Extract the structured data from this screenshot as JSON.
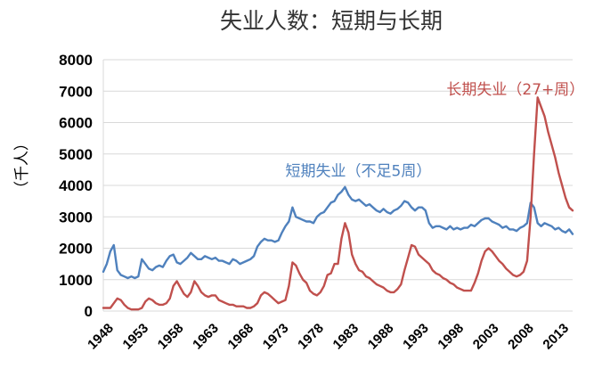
{
  "chart_data": {
    "type": "line",
    "title": "失业人数：短期与长期",
    "ylabel": "（千人）",
    "xlabel": "",
    "ylim": [
      0,
      8000
    ],
    "yticks": [
      0,
      1000,
      2000,
      3000,
      4000,
      5000,
      6000,
      7000,
      8000
    ],
    "xticks": [
      "1948",
      "1953",
      "1958",
      "1963",
      "1968",
      "1973",
      "1978",
      "1983",
      "1988",
      "1993",
      "1998",
      "2003",
      "2008",
      "2013"
    ],
    "xlim": [
      1948,
      2015
    ],
    "grid": "horizontal",
    "legend": "inline-labels",
    "series": [
      {
        "name": "短期失业（不足5周）",
        "color": "#4f81bd",
        "x": [
          1948.0,
          1948.5,
          1949.0,
          1949.5,
          1950.0,
          1950.5,
          1951.0,
          1951.5,
          1952.0,
          1952.5,
          1953.0,
          1953.5,
          1954.0,
          1954.5,
          1955.0,
          1955.5,
          1956.0,
          1956.5,
          1957.0,
          1957.5,
          1958.0,
          1958.5,
          1959.0,
          1959.5,
          1960.0,
          1960.5,
          1961.0,
          1961.5,
          1962.0,
          1962.5,
          1963.0,
          1963.5,
          1964.0,
          1964.5,
          1965.0,
          1965.5,
          1966.0,
          1966.5,
          1967.0,
          1967.5,
          1968.0,
          1968.5,
          1969.0,
          1969.5,
          1970.0,
          1970.5,
          1971.0,
          1971.5,
          1972.0,
          1972.5,
          1973.0,
          1973.5,
          1974.0,
          1974.5,
          1975.0,
          1975.5,
          1976.0,
          1976.5,
          1977.0,
          1977.5,
          1978.0,
          1978.5,
          1979.0,
          1979.5,
          1980.0,
          1980.5,
          1981.0,
          1981.5,
          1982.0,
          1982.5,
          1983.0,
          1983.5,
          1984.0,
          1984.5,
          1985.0,
          1985.5,
          1986.0,
          1986.5,
          1987.0,
          1987.5,
          1988.0,
          1988.5,
          1989.0,
          1989.5,
          1990.0,
          1990.5,
          1991.0,
          1991.5,
          1992.0,
          1992.5,
          1993.0,
          1993.5,
          1994.0,
          1994.5,
          1995.0,
          1995.5,
          1996.0,
          1996.5,
          1997.0,
          1997.5,
          1998.0,
          1998.5,
          1999.0,
          1999.5,
          2000.0,
          2000.5,
          2001.0,
          2001.5,
          2002.0,
          2002.5,
          2003.0,
          2003.5,
          2004.0,
          2004.5,
          2005.0,
          2005.5,
          2006.0,
          2006.5,
          2007.0,
          2007.5,
          2008.0,
          2008.5,
          2009.0,
          2009.5,
          2010.0,
          2010.5,
          2011.0,
          2011.5,
          2012.0,
          2012.5,
          2013.0,
          2013.5,
          2014.0,
          2014.5,
          2015.0
        ],
        "values": [
          1250,
          1500,
          1900,
          2100,
          1300,
          1150,
          1100,
          1050,
          1100,
          1050,
          1100,
          1650,
          1500,
          1350,
          1300,
          1400,
          1450,
          1400,
          1600,
          1750,
          1800,
          1550,
          1500,
          1600,
          1700,
          1850,
          1750,
          1650,
          1650,
          1750,
          1700,
          1650,
          1700,
          1600,
          1600,
          1550,
          1500,
          1650,
          1600,
          1500,
          1550,
          1600,
          1650,
          1750,
          2050,
          2200,
          2300,
          2250,
          2250,
          2200,
          2250,
          2500,
          2700,
          2850,
          3300,
          3000,
          2950,
          2900,
          2850,
          2850,
          2800,
          3000,
          3100,
          3150,
          3300,
          3450,
          3500,
          3700,
          3800,
          3950,
          3700,
          3550,
          3500,
          3550,
          3450,
          3350,
          3400,
          3300,
          3200,
          3150,
          3250,
          3150,
          3100,
          3200,
          3250,
          3350,
          3500,
          3450,
          3300,
          3200,
          3300,
          3300,
          3200,
          2800,
          2650,
          2700,
          2700,
          2650,
          2600,
          2700,
          2600,
          2650,
          2600,
          2650,
          2650,
          2750,
          2700,
          2800,
          2900,
          2950,
          2950,
          2850,
          2800,
          2750,
          2650,
          2700,
          2600,
          2600,
          2550,
          2650,
          2700,
          2800,
          3450,
          3300,
          2800,
          2700,
          2800,
          2750,
          2700,
          2600,
          2650,
          2550,
          2500,
          2600,
          2450
        ]
      },
      {
        "name": "长期失业（27+周）",
        "color": "#c0504d",
        "x": [
          1948.0,
          1948.5,
          1949.0,
          1949.5,
          1950.0,
          1950.5,
          1951.0,
          1951.5,
          1952.0,
          1952.5,
          1953.0,
          1953.5,
          1954.0,
          1954.5,
          1955.0,
          1955.5,
          1956.0,
          1956.5,
          1957.0,
          1957.5,
          1958.0,
          1958.5,
          1959.0,
          1959.5,
          1960.0,
          1960.5,
          1961.0,
          1961.5,
          1962.0,
          1962.5,
          1963.0,
          1963.5,
          1964.0,
          1964.5,
          1965.0,
          1965.5,
          1966.0,
          1966.5,
          1967.0,
          1967.5,
          1968.0,
          1968.5,
          1969.0,
          1969.5,
          1970.0,
          1970.5,
          1971.0,
          1971.5,
          1972.0,
          1972.5,
          1973.0,
          1973.5,
          1974.0,
          1974.5,
          1975.0,
          1975.5,
          1976.0,
          1976.5,
          1977.0,
          1977.5,
          1978.0,
          1978.5,
          1979.0,
          1979.5,
          1980.0,
          1980.5,
          1981.0,
          1981.5,
          1982.0,
          1982.5,
          1983.0,
          1983.5,
          1984.0,
          1984.5,
          1985.0,
          1985.5,
          1986.0,
          1986.5,
          1987.0,
          1987.5,
          1988.0,
          1988.5,
          1989.0,
          1989.5,
          1990.0,
          1990.5,
          1991.0,
          1991.5,
          1992.0,
          1992.5,
          1993.0,
          1993.5,
          1994.0,
          1994.5,
          1995.0,
          1995.5,
          1996.0,
          1996.5,
          1997.0,
          1997.5,
          1998.0,
          1998.5,
          1999.0,
          1999.5,
          2000.0,
          2000.5,
          2001.0,
          2001.5,
          2002.0,
          2002.5,
          2003.0,
          2003.5,
          2004.0,
          2004.5,
          2005.0,
          2005.5,
          2006.0,
          2006.5,
          2007.0,
          2007.5,
          2008.0,
          2008.5,
          2009.0,
          2009.5,
          2010.0,
          2010.5,
          2011.0,
          2011.5,
          2012.0,
          2012.5,
          2013.0,
          2013.5,
          2014.0,
          2014.5,
          2015.0
        ],
        "values": [
          100,
          100,
          100,
          250,
          400,
          350,
          200,
          100,
          50,
          50,
          50,
          100,
          300,
          400,
          350,
          250,
          200,
          200,
          250,
          400,
          800,
          950,
          750,
          550,
          450,
          600,
          950,
          800,
          600,
          500,
          450,
          500,
          500,
          350,
          300,
          250,
          200,
          200,
          150,
          150,
          150,
          100,
          100,
          150,
          250,
          500,
          600,
          550,
          450,
          350,
          250,
          300,
          350,
          800,
          1550,
          1450,
          1200,
          1000,
          900,
          650,
          550,
          500,
          600,
          800,
          1150,
          1200,
          1500,
          1500,
          2300,
          2800,
          2500,
          1800,
          1500,
          1300,
          1250,
          1100,
          1050,
          950,
          850,
          800,
          750,
          650,
          600,
          600,
          700,
          850,
          1300,
          1700,
          2100,
          2050,
          1800,
          1700,
          1600,
          1500,
          1300,
          1200,
          1150,
          1050,
          1000,
          900,
          850,
          750,
          700,
          650,
          650,
          650,
          900,
          1200,
          1600,
          1900,
          2000,
          1900,
          1750,
          1600,
          1500,
          1350,
          1250,
          1150,
          1100,
          1150,
          1250,
          1600,
          3000,
          5000,
          6800,
          6500,
          6200,
          5700,
          5300,
          4900,
          4400,
          4000,
          3600,
          3300,
          3200
        ]
      }
    ],
    "annotations": [
      {
        "text": "短期失业（不足5周）",
        "series": 0,
        "x": 1974,
        "y": 4300
      },
      {
        "text": "长期失业（27+周）",
        "series": 1,
        "x": 1997,
        "y": 6900
      }
    ]
  }
}
